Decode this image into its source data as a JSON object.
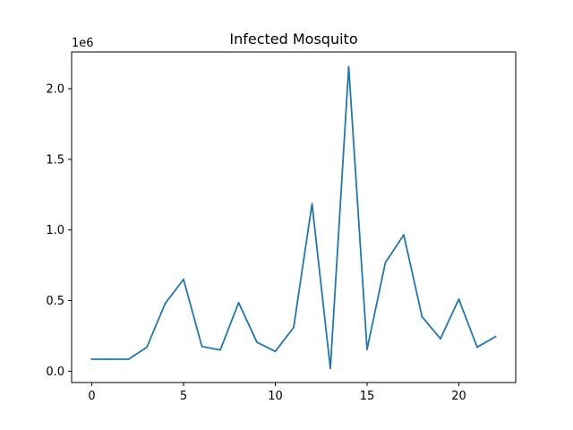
{
  "chart_data": {
    "type": "line",
    "title": "Infected Mosquito",
    "xlabel": "",
    "ylabel": "",
    "y_offset_label": "1e6",
    "xlim": [
      -1.1,
      23.1
    ],
    "ylim": [
      -0.08,
      2.26
    ],
    "x_ticks": [
      0,
      5,
      10,
      15,
      20
    ],
    "x_tick_labels": [
      "0",
      "5",
      "10",
      "15",
      "20"
    ],
    "y_ticks": [
      0.0,
      0.5,
      1.0,
      1.5,
      2.0
    ],
    "y_tick_labels": [
      "0.0",
      "0.5",
      "1.0",
      "1.5",
      "2.0"
    ],
    "grid": false,
    "series": [
      {
        "color": "#1f77b4",
        "x": [
          0,
          1,
          2,
          3,
          4,
          5,
          6,
          7,
          8,
          9,
          10,
          11,
          12,
          13,
          14,
          15,
          16,
          17,
          18,
          19,
          20,
          21,
          22
        ],
        "values": [
          0.085,
          0.085,
          0.085,
          0.17,
          0.48,
          0.65,
          0.175,
          0.15,
          0.485,
          0.205,
          0.14,
          0.31,
          1.185,
          0.02,
          2.155,
          0.155,
          0.77,
          0.965,
          0.385,
          0.23,
          0.51,
          0.17,
          0.245
        ]
      }
    ]
  }
}
